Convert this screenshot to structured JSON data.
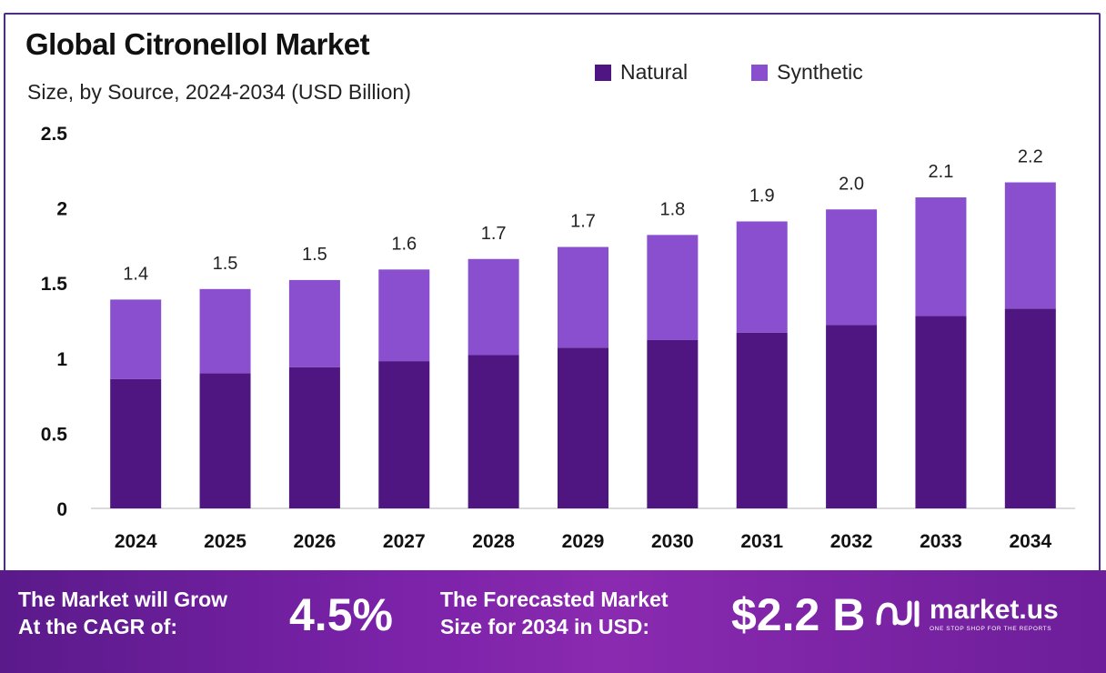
{
  "header": {
    "title": "Global Citronellol Market",
    "subtitle": "Size, by Source, 2024-2034 (USD Billion)"
  },
  "colors": {
    "natural": "#4f1581",
    "synthetic": "#8a4fcf",
    "frame": "#4b2e83"
  },
  "chart_data": {
    "type": "bar",
    "stacked": true,
    "categories": [
      "2024",
      "2025",
      "2026",
      "2027",
      "2028",
      "2029",
      "2030",
      "2031",
      "2032",
      "2033",
      "2034"
    ],
    "series": [
      {
        "name": "Natural",
        "values": [
          0.86,
          0.9,
          0.94,
          0.98,
          1.02,
          1.07,
          1.12,
          1.17,
          1.22,
          1.28,
          1.33
        ]
      },
      {
        "name": "Synthetic",
        "values": [
          0.53,
          0.56,
          0.58,
          0.61,
          0.64,
          0.67,
          0.7,
          0.74,
          0.77,
          0.79,
          0.84
        ]
      }
    ],
    "totals_labels": [
      "1.4",
      "1.5",
      "1.5",
      "1.6",
      "1.7",
      "1.7",
      "1.8",
      "1.9",
      "2.0",
      "2.1",
      "2.2"
    ],
    "ylim": [
      0,
      2.5
    ],
    "yticks": [
      "0",
      "0.5",
      "1",
      "1.5",
      "2",
      "2.5"
    ],
    "ytick_values": [
      0,
      0.5,
      1,
      1.5,
      2,
      2.5
    ],
    "grid": false,
    "legend_position": "top-right"
  },
  "footer": {
    "cagr_label_line1": "The Market will Grow",
    "cagr_label_line2": "At the CAGR of:",
    "cagr_value": "4.5%",
    "forecast_label_line1": "The Forecasted Market",
    "forecast_label_line2": "Size for 2034 in USD:",
    "forecast_value": "$2.2 B",
    "brand_name": "market.us",
    "brand_tagline": "ONE STOP SHOP FOR THE REPORTS"
  }
}
